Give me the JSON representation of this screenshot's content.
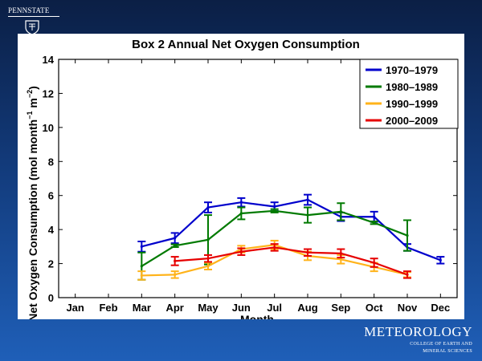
{
  "branding": {
    "university": "PENNSTATE",
    "department": "METEOROLOGY",
    "college_line_1": "COLLEGE OF EARTH AND",
    "college_line_2": "MINERAL SCIENCES"
  },
  "colors": {
    "background_top": "#0b1f45",
    "background_bottom": "#1f5fb8",
    "series_1970": "#0000cc",
    "series_1980": "#007a00",
    "series_1990": "#ffb31a",
    "series_2000": "#e60000"
  },
  "chart_data": {
    "type": "line",
    "title": "Box 2 Annual Net Oxygen Consumption",
    "xlabel": "Month",
    "ylabel_main": "Net Oxygen Consumption (mol month",
    "ylabel_sup1": "−1",
    "ylabel_mid": " m",
    "ylabel_sup2": "−2",
    "ylabel_end": ")",
    "categories": [
      "Jan",
      "Feb",
      "Mar",
      "Apr",
      "May",
      "Jun",
      "Jul",
      "Aug",
      "Sep",
      "Oct",
      "Nov",
      "Dec"
    ],
    "ylim": [
      0,
      14
    ],
    "yticks": [
      0,
      2,
      4,
      6,
      8,
      10,
      12,
      14
    ],
    "grid": false,
    "legend_position": "top-right",
    "series": [
      {
        "name": "1970–1979",
        "color": "#0000cc",
        "values": [
          null,
          null,
          3.0,
          3.5,
          5.3,
          5.6,
          5.35,
          5.75,
          4.75,
          4.75,
          2.95,
          2.2
        ],
        "errors": [
          null,
          null,
          0.3,
          0.3,
          0.3,
          0.25,
          0.25,
          0.3,
          0.25,
          0.3,
          0.2,
          0.2
        ]
      },
      {
        "name": "1980–1989",
        "color": "#007a00",
        "values": [
          null,
          null,
          1.85,
          3.05,
          3.4,
          4.95,
          5.1,
          4.85,
          5.05,
          4.4,
          3.65,
          null
        ],
        "errors": [
          null,
          null,
          0.8,
          0.08,
          1.45,
          0.35,
          0.1,
          0.45,
          0.5,
          0.08,
          0.9,
          null
        ]
      },
      {
        "name": "1990–1999",
        "color": "#ffb31a",
        "values": [
          null,
          null,
          1.3,
          1.35,
          1.85,
          2.85,
          3.1,
          2.45,
          2.25,
          1.8,
          1.35,
          null
        ],
        "errors": [
          null,
          null,
          0.25,
          0.2,
          0.2,
          0.2,
          0.25,
          0.25,
          0.25,
          0.25,
          0.15,
          null
        ]
      },
      {
        "name": "2000–2009",
        "color": "#e60000",
        "values": [
          null,
          null,
          null,
          2.15,
          2.3,
          2.7,
          2.95,
          2.65,
          2.6,
          2.05,
          1.35,
          null
        ],
        "errors": [
          null,
          null,
          null,
          0.25,
          0.2,
          0.2,
          0.2,
          0.2,
          0.25,
          0.25,
          0.2,
          null
        ]
      }
    ]
  }
}
